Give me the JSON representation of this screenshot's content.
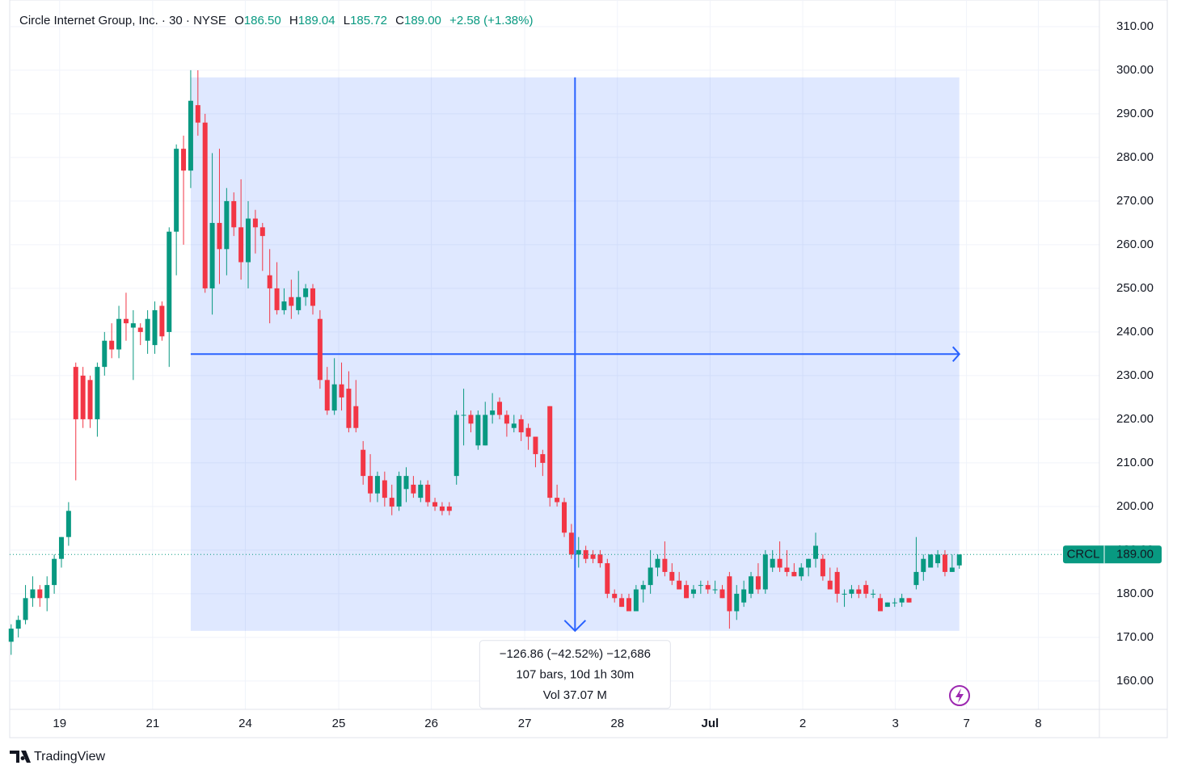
{
  "chart_data": {
    "type": "candlestick",
    "title": "Circle Internet Group, Inc. · 30 · NYSE",
    "ohlc_header": [
      {
        "label": "O",
        "value": "186.50"
      },
      {
        "label": "H",
        "value": "189.04"
      },
      {
        "label": "L",
        "value": "185.72"
      },
      {
        "label": "C",
        "value": "189.00"
      }
    ],
    "change": "+2.58 (+1.38%)",
    "symbol": "CRCL",
    "last_price": {
      "value": 189,
      "label": "189.00"
    },
    "up_color": "#089981",
    "down_color": "#f23645",
    "grid": true,
    "open": [
      169,
      172,
      174,
      179,
      181,
      179,
      182,
      188,
      193,
      232,
      230,
      229,
      220,
      232,
      238,
      236,
      243,
      241,
      241,
      238,
      237,
      246,
      240,
      263,
      282,
      277,
      292,
      288,
      250,
      265,
      259,
      270,
      264,
      256,
      266,
      264,
      253,
      250,
      245,
      248,
      245,
      248,
      250,
      243,
      229,
      222,
      228,
      227,
      223,
      213,
      207,
      203,
      206,
      202,
      200,
      204,
      205,
      202,
      205,
      201,
      200,
      200,
      207,
      221,
      221,
      214,
      214,
      221,
      224,
      221,
      218,
      220,
      218,
      216,
      212,
      223,
      202,
      201,
      194,
      189,
      190,
      189,
      189,
      187,
      180,
      179,
      179,
      176,
      181,
      182,
      186,
      188,
      185,
      183,
      182,
      180,
      182,
      182,
      181,
      181,
      184,
      176,
      178,
      180,
      184,
      181,
      186,
      188,
      186,
      185,
      184,
      186,
      188,
      188,
      183,
      185,
      180,
      180,
      181,
      182,
      180,
      179,
      177,
      178,
      178,
      179,
      182,
      185,
      186,
      187,
      189,
      185,
      186.5
    ],
    "high": [
      173,
      175,
      182,
      184,
      182,
      184,
      189,
      193,
      201,
      233,
      232,
      230,
      233,
      240,
      242,
      246,
      249,
      245,
      242,
      245,
      247,
      247,
      264,
      283,
      285,
      300,
      300,
      290,
      281,
      282,
      273,
      272,
      275,
      270,
      268,
      265,
      259,
      256,
      250,
      252,
      254,
      251,
      251,
      245,
      232,
      234,
      233,
      231,
      229,
      215,
      212,
      208,
      208,
      205,
      208,
      209,
      207,
      206,
      206,
      202,
      201,
      201,
      222,
      227,
      222,
      222,
      224,
      226,
      225,
      222,
      221,
      221,
      219,
      216,
      213,
      223,
      205,
      202,
      196,
      193,
      191,
      190,
      190,
      188,
      181,
      180,
      180,
      182,
      183,
      190,
      189,
      192,
      187,
      185,
      183,
      182,
      183,
      183,
      183,
      182,
      185,
      182,
      183,
      185,
      187,
      190,
      190,
      192,
      190,
      187,
      187,
      188,
      194,
      189,
      186,
      186,
      181,
      182,
      182,
      183,
      181,
      180,
      178,
      179,
      180,
      179,
      193,
      189,
      189,
      190,
      190,
      189,
      189.04
    ],
    "low": [
      166,
      170,
      173,
      177,
      177,
      176,
      180,
      186,
      191,
      206,
      218,
      218,
      216,
      230,
      234,
      234,
      238,
      229,
      237,
      235,
      235,
      238,
      232,
      253,
      260,
      273,
      285,
      249,
      244,
      251,
      253,
      262,
      252,
      250,
      258,
      254,
      242,
      244,
      244,
      243,
      244,
      246,
      244,
      227,
      221,
      221,
      222,
      217,
      217,
      205,
      201,
      201,
      200,
      198,
      199,
      201,
      202,
      201,
      200,
      199,
      198,
      198,
      205,
      214,
      217,
      213,
      214,
      219,
      220,
      216,
      217,
      215,
      213,
      209,
      207,
      200,
      200,
      193,
      188,
      186,
      187,
      187,
      186,
      179,
      178,
      177,
      176,
      176,
      178,
      180,
      184,
      184,
      182,
      181,
      179,
      179,
      180,
      180,
      180,
      179,
      172,
      174,
      177,
      179,
      180,
      180,
      185,
      185,
      184,
      184,
      183,
      184,
      186,
      183,
      181,
      178,
      177,
      179,
      179,
      179,
      179,
      176,
      177,
      177,
      177,
      178,
      181,
      183,
      186,
      186,
      184,
      185,
      185.72
    ],
    "close": [
      172,
      174,
      179,
      181,
      179,
      182,
      188,
      193,
      199,
      220,
      220,
      220,
      232,
      238,
      236,
      243,
      242,
      242,
      240,
      243,
      245,
      239,
      263,
      282,
      277,
      293,
      288,
      250,
      265,
      259,
      270,
      264,
      256,
      266,
      264,
      262,
      250,
      245,
      247,
      246,
      248,
      250,
      246,
      229,
      222,
      228,
      225,
      218,
      218,
      207,
      203,
      207,
      202,
      200,
      207,
      207,
      203,
      205,
      201,
      200,
      199,
      199,
      221,
      221,
      219,
      221,
      221,
      222,
      221,
      219,
      219,
      217,
      216,
      212,
      210,
      202,
      201,
      194,
      189,
      190,
      188,
      188,
      187,
      180,
      179,
      177,
      176,
      181,
      182,
      186,
      188,
      185,
      183,
      181,
      179,
      181,
      182,
      181,
      181,
      179,
      176,
      180,
      181,
      184,
      181,
      189,
      188,
      186,
      185,
      184,
      186,
      188,
      191,
      184,
      181,
      180,
      180,
      181,
      180,
      180,
      180,
      176,
      178,
      178,
      179,
      178,
      185,
      188,
      189,
      189,
      185,
      186,
      189
    ],
    "xlim": [
      -0.2,
      151.5
    ],
    "xticks": [
      {
        "value": 6.75,
        "label": "19"
      },
      {
        "value": 19.7,
        "label": "21"
      },
      {
        "value": 32.6,
        "label": "24"
      },
      {
        "value": 45.6,
        "label": "25"
      },
      {
        "value": 58.5,
        "label": "26"
      },
      {
        "value": 71.5,
        "label": "27"
      },
      {
        "value": 84.4,
        "label": "28"
      },
      {
        "value": 97.3,
        "label": "Jul"
      },
      {
        "value": 110.2,
        "label": "2"
      },
      {
        "value": 123.1,
        "label": "3"
      },
      {
        "value": 133.0,
        "label": "7"
      },
      {
        "value": 143.0,
        "label": "8"
      }
    ],
    "ylim": [
      153.5,
      316.1
    ],
    "yticks": [
      {
        "value": 160,
        "label": "160.00"
      },
      {
        "value": 170,
        "label": "170.00"
      },
      {
        "value": 180,
        "label": "180.00"
      },
      {
        "value": 190,
        "label": "190.00"
      },
      {
        "value": 200,
        "label": "200.00"
      },
      {
        "value": 210,
        "label": "210.00"
      },
      {
        "value": 220,
        "label": "220.00"
      },
      {
        "value": 230,
        "label": "230.00"
      },
      {
        "value": 240,
        "label": "240.00"
      },
      {
        "value": 250,
        "label": "250.00"
      },
      {
        "value": 260,
        "label": "260.00"
      },
      {
        "value": 270,
        "label": "270.00"
      },
      {
        "value": 280,
        "label": "280.00"
      },
      {
        "value": 290,
        "label": "290.00"
      },
      {
        "value": 300,
        "label": "300.00"
      },
      {
        "value": 310,
        "label": "310.00"
      }
    ],
    "measure": {
      "start_bar": 25,
      "end_bar": 132,
      "start_price": 298.36,
      "end_price": 171.5,
      "color": "#2962ff",
      "change_label": "−126.86 (−42.52%) −12,686",
      "bars_label": "107 bars, 10d 1h 30m",
      "volume_label": "Vol 37.07 M"
    },
    "brand": "TradingView"
  }
}
